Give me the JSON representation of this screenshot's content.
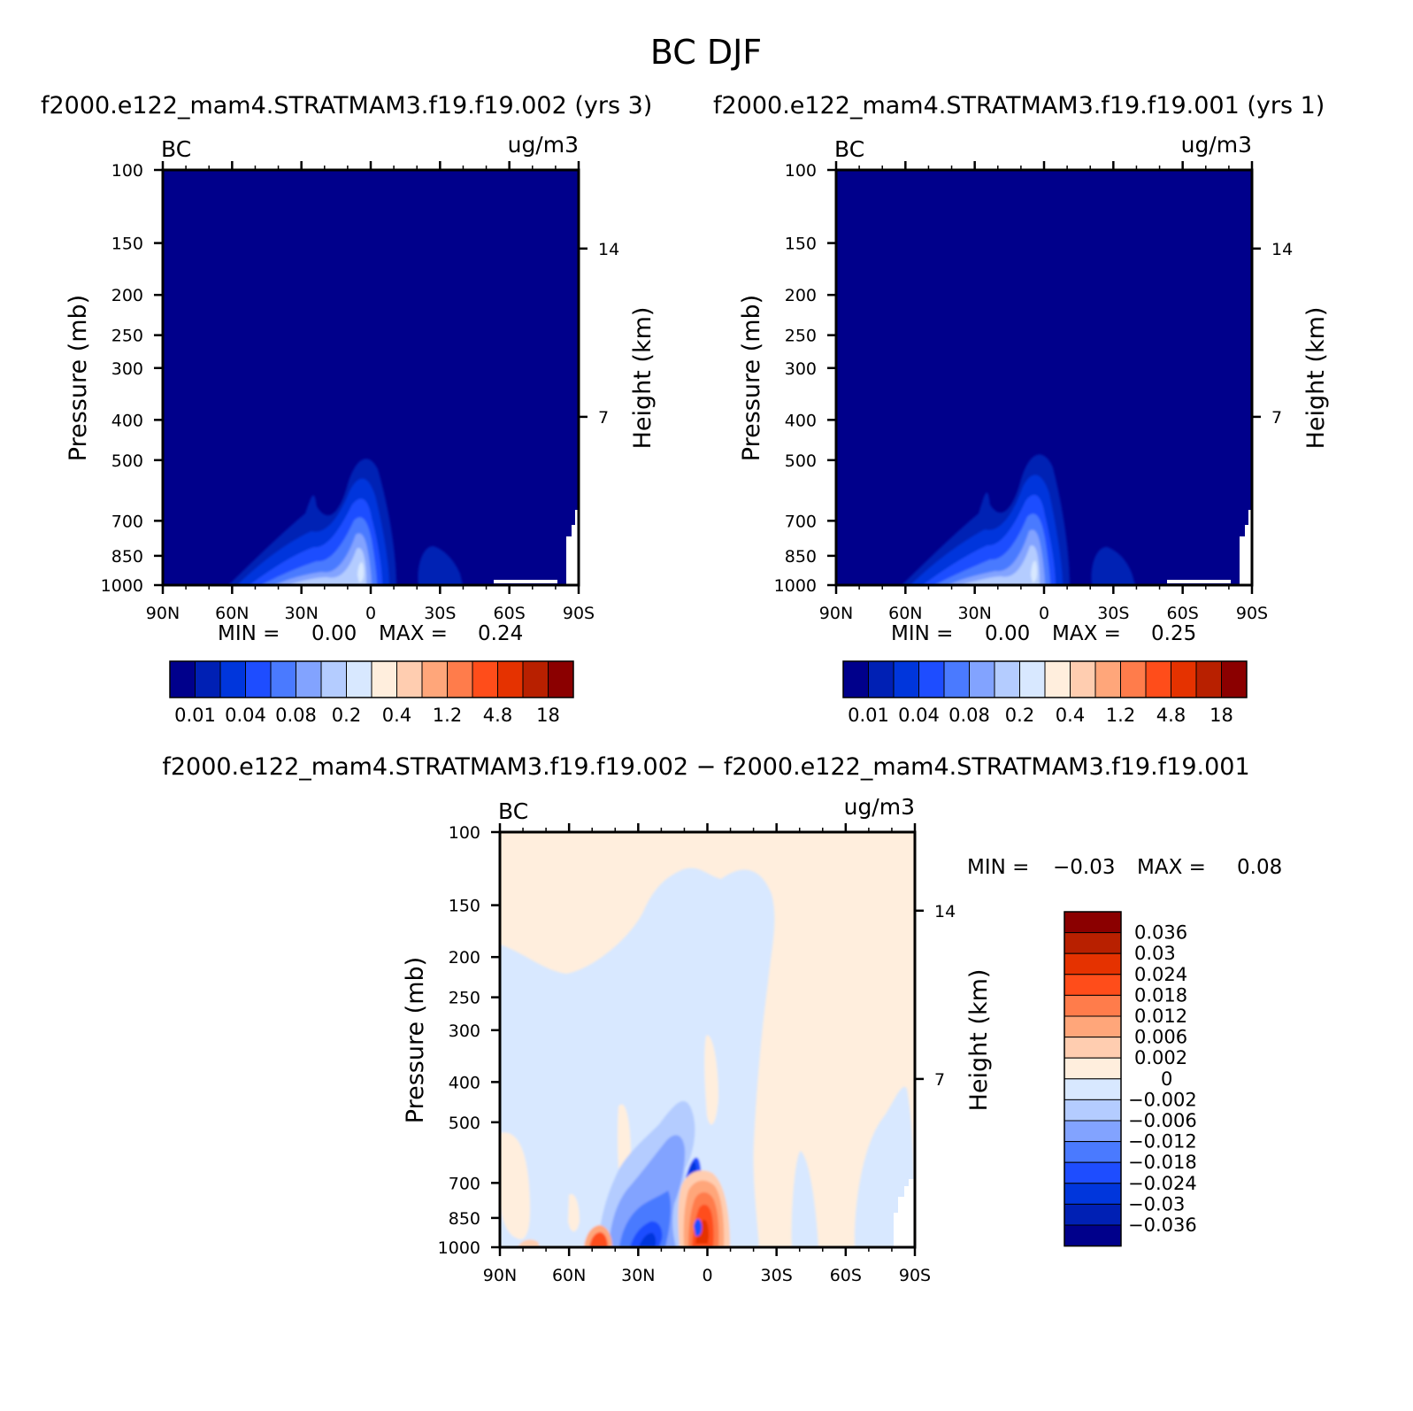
{
  "figure": {
    "title": "BC DJF",
    "subtitle_left": "f2000.e122_mam4.STRATMAM3.f19.f19.002 (yrs 3)",
    "subtitle_right": "f2000.e122_mam4.STRATMAM3.f19.f19.001 (yrs 1)",
    "diff_title": "f2000.e122_mam4.STRATMAM3.f19.f19.002 − f2000.e122_mam4.STRATMAM3.f19.f19.001"
  },
  "colors": {
    "background": "#ffffff",
    "positive_scale": [
      "#00008b",
      "#0020b4",
      "#0036dc",
      "#1e4dff",
      "#4a7aff",
      "#82a3ff",
      "#b4ccff",
      "#d8e8ff",
      "#ffeedd",
      "#ffcdb0",
      "#ffa67a",
      "#ff7c4b",
      "#ff4d1a",
      "#e53200",
      "#b82000",
      "#8b0000"
    ],
    "diff_scale": [
      "#00008b",
      "#0020b4",
      "#0036dc",
      "#1e4dff",
      "#4a7aff",
      "#82a3ff",
      "#b4ccff",
      "#d8e8ff",
      "#ffeedd",
      "#ffcdb0",
      "#ffa67a",
      "#ff7c4b",
      "#ff4d1a",
      "#e53200",
      "#b82000",
      "#8b0000"
    ]
  },
  "chart_data": [
    {
      "type": "heatmap",
      "panel": "model-002",
      "var_label": "BC",
      "units": "ug/m3",
      "ylabel": "Pressure (mb)",
      "ylabel_right": "Height (km)",
      "x_ticks": [
        "90N",
        "60N",
        "30N",
        "0",
        "30S",
        "60S",
        "90S"
      ],
      "y_ticks": [
        100,
        150,
        200,
        250,
        300,
        400,
        500,
        700,
        850,
        1000
      ],
      "y_range": [
        1000,
        100
      ],
      "y_right_ticks": [
        7,
        14
      ],
      "stats": {
        "min_label": "MIN =",
        "min": "0.00",
        "max_label": "MAX =",
        "max": "0.24"
      },
      "colorbar_labels": [
        "0.01",
        "0.04",
        "0.08",
        "0.2",
        "0.4",
        "1.2",
        "4.8",
        "18"
      ]
    },
    {
      "type": "heatmap",
      "panel": "model-001",
      "var_label": "BC",
      "units": "ug/m3",
      "ylabel": "Pressure (mb)",
      "ylabel_right": "Height (km)",
      "x_ticks": [
        "90N",
        "60N",
        "30N",
        "0",
        "30S",
        "60S",
        "90S"
      ],
      "y_ticks": [
        100,
        150,
        200,
        250,
        300,
        400,
        500,
        700,
        850,
        1000
      ],
      "y_range": [
        1000,
        100
      ],
      "y_right_ticks": [
        7,
        14
      ],
      "stats": {
        "min_label": "MIN =",
        "min": "0.00",
        "max_label": "MAX =",
        "max": "0.25"
      },
      "colorbar_labels": [
        "0.01",
        "0.04",
        "0.08",
        "0.2",
        "0.4",
        "1.2",
        "4.8",
        "18"
      ]
    },
    {
      "type": "heatmap",
      "panel": "difference",
      "var_label": "BC",
      "units": "ug/m3",
      "ylabel": "Pressure (mb)",
      "ylabel_right": "Height (km)",
      "x_ticks": [
        "90N",
        "60N",
        "30N",
        "0",
        "30S",
        "60S",
        "90S"
      ],
      "y_ticks": [
        100,
        150,
        200,
        250,
        300,
        400,
        500,
        700,
        850,
        1000
      ],
      "y_range": [
        1000,
        100
      ],
      "y_right_ticks": [
        7,
        14
      ],
      "stats": {
        "min_label": "MIN =",
        "min": "−0.03",
        "max_label": "MAX =",
        "max": "0.08"
      },
      "colorbar_labels": [
        "0.036",
        "0.03",
        "0.024",
        "0.018",
        "0.012",
        "0.006",
        "0.002",
        "0",
        "−0.002",
        "−0.006",
        "−0.012",
        "−0.018",
        "−0.024",
        "−0.03",
        "−0.036"
      ]
    }
  ]
}
